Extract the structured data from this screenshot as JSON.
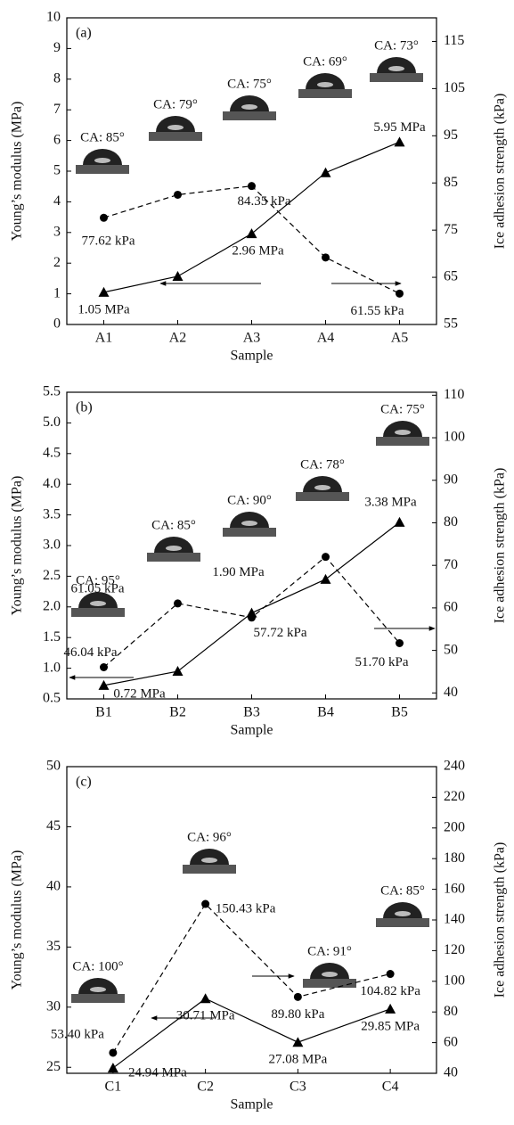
{
  "chart_data": [
    {
      "type": "line",
      "panel_label": "(a)",
      "x_label": "Sample",
      "y_label": "Young’s modulus (MPa)",
      "y2_label": "Ice adhesion strength (kPa)",
      "categories": [
        "A1",
        "A2",
        "A3",
        "A4",
        "A5"
      ],
      "ylim": [
        0,
        10
      ],
      "yticks": [
        0,
        1,
        2,
        3,
        4,
        5,
        6,
        7,
        8,
        9,
        10
      ],
      "y2lim": [
        55,
        120
      ],
      "y2ticks": [
        55,
        65,
        75,
        85,
        95,
        105,
        115
      ],
      "series": [
        {
          "color": "#000000",
          "marker": "triangle",
          "dash": false,
          "values": [
            1.05,
            1.57,
            2.96,
            4.95,
            5.95
          ],
          "value_labels": [
            "1.05 MPa",
            null,
            "2.96 MPa",
            null,
            "5.95 MPa"
          ]
        },
        {
          "color": "#000000",
          "marker": "circle",
          "dash": true,
          "axis": "y2",
          "values": [
            77.62,
            82.5,
            84.35,
            69.2,
            61.55
          ],
          "value_labels": [
            "77.62 kPa",
            null,
            "84.35 kPa",
            null,
            "61.55 kPa"
          ]
        }
      ],
      "ca_labels": [
        "CA: 85°",
        "CA: 79°",
        "CA: 75°",
        "CA: 69°",
        "CA: 73°"
      ]
    },
    {
      "type": "line",
      "panel_label": "(b)",
      "x_label": "Sample",
      "y_label": "Young’s modulus (MPa)",
      "y2_label": "Ice adhesion strength (kPa)",
      "categories": [
        "B1",
        "B2",
        "B3",
        "B4",
        "B5"
      ],
      "ylim": [
        0.5,
        5.5
      ],
      "yticks": [
        0.5,
        {
          "value": 1,
          "label": "1.0"
        },
        1.5,
        {
          "value": 2,
          "label": "2.0"
        },
        2.5,
        {
          "value": 3,
          "label": "3.0"
        },
        3.5,
        {
          "value": 4,
          "label": "4.0"
        },
        4.5,
        {
          "value": 5,
          "label": "5.0"
        },
        5.5
      ],
      "y2lim": [
        38.6,
        110.7
      ],
      "y2ticks": [
        40,
        50,
        60,
        70,
        80,
        90,
        100,
        110
      ],
      "series": [
        {
          "color": "#000000",
          "marker": "triangle",
          "dash": false,
          "values": [
            0.72,
            0.95,
            1.9,
            2.45,
            3.38
          ],
          "value_labels": [
            "0.72 MPa",
            null,
            "1.90 MPa",
            null,
            "3.38 MPa"
          ]
        },
        {
          "color": "#000000",
          "marker": "circle",
          "dash": true,
          "axis": "y2",
          "values": [
            46.04,
            61.05,
            57.72,
            72,
            51.7
          ],
          "value_labels": [
            "46.04 kPa",
            "61.05 kPa",
            "57.72 kPa",
            null,
            "51.70 kPa"
          ]
        }
      ],
      "ca_labels": [
        "CA: 95°",
        "CA: 85°",
        "CA: 90°",
        "CA: 78°",
        "CA: 75°"
      ]
    },
    {
      "type": "line",
      "panel_label": "(c)",
      "x_label": "Sample",
      "y_label": "Young’s modulus (MPa)",
      "y2_label": "Ice adhesion strength (kPa)",
      "categories": [
        "C1",
        "C2",
        "C3",
        "C4"
      ],
      "ylim": [
        24.5,
        50
      ],
      "yticks": [
        25,
        30,
        35,
        40,
        45,
        50
      ],
      "y2lim": [
        40,
        240
      ],
      "y2ticks": [
        40,
        60,
        80,
        100,
        120,
        140,
        160,
        180,
        200,
        220,
        240
      ],
      "series": [
        {
          "color": "#000000",
          "marker": "triangle",
          "dash": false,
          "values": [
            24.94,
            30.71,
            27.08,
            29.85
          ],
          "value_labels": [
            "24.94 MPa",
            "30.71 MPa",
            "27.08 MPa",
            "29.85 MPa"
          ]
        },
        {
          "color": "#000000",
          "marker": "circle",
          "dash": true,
          "axis": "y2",
          "values": [
            53.4,
            150.43,
            89.8,
            104.82
          ],
          "value_labels": [
            "53.40 kPa",
            "150.43 kPa",
            "89.80 kPa",
            "104.82 kPa"
          ]
        }
      ],
      "ca_labels": [
        "CA: 100°",
        "CA: 96°",
        "CA: 91°",
        "CA: 85°"
      ]
    }
  ]
}
